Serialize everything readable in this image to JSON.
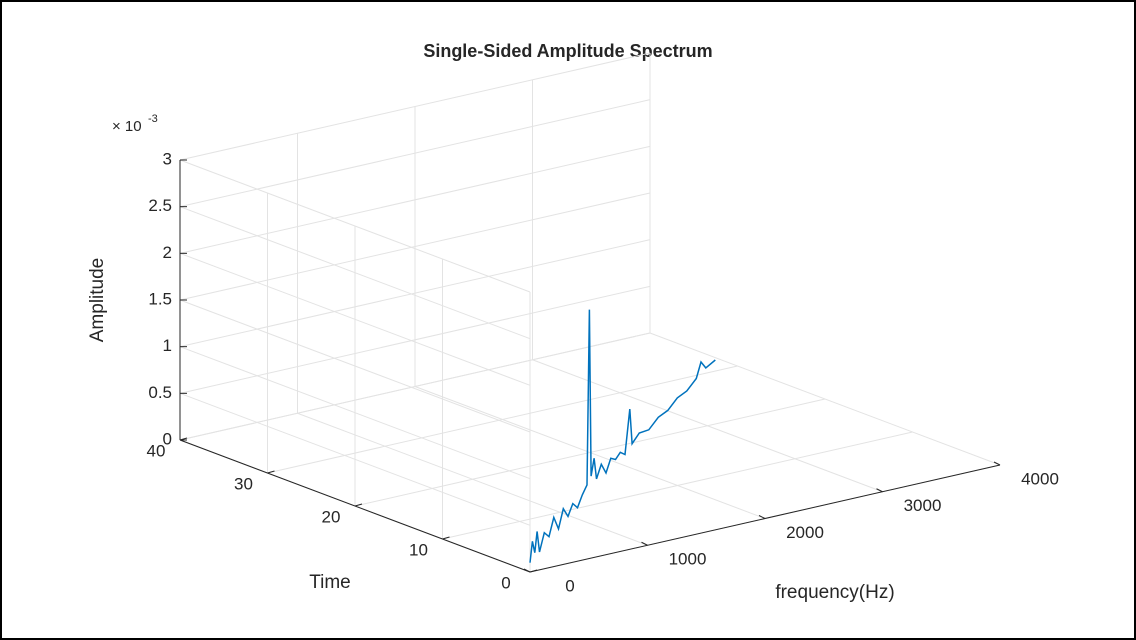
{
  "chart_data": {
    "type": "line3d",
    "title": "Single-Sided Amplitude Spectrum",
    "xlabel": "frequency(Hz)",
    "ylabel": "Time",
    "zlabel": "Amplitude",
    "z_multiplier": {
      "base": "× 10",
      "exponent": "-3"
    },
    "xlim": [
      0,
      4000
    ],
    "xticks": [
      0,
      1000,
      2000,
      3000,
      4000
    ],
    "ylim": [
      0,
      40
    ],
    "yticks": [
      0,
      10,
      20,
      30,
      40
    ],
    "zlim": [
      0,
      3
    ],
    "zticks": [
      0,
      0.5,
      1,
      1.5,
      2,
      2.5,
      3
    ],
    "grid": true,
    "series": [
      {
        "color": "#0072bd",
        "x": [
          0,
          50,
          100,
          150,
          200,
          300,
          400,
          500,
          600,
          700,
          800,
          900,
          1000,
          1100,
          1200,
          1250,
          1280,
          1350,
          1400,
          1500,
          1600,
          1700,
          1800,
          1900,
          2000,
          2100,
          2150,
          2300,
          2500,
          2700,
          2900,
          3100,
          3300,
          3500,
          3600,
          3700,
          3900
        ],
        "y": [
          0,
          0.4,
          0.8,
          1.2,
          1.6,
          2.4,
          3.2,
          4,
          4.8,
          5.6,
          6.4,
          7.2,
          8,
          8.8,
          9.6,
          10,
          10.2,
          10.8,
          11.2,
          12,
          12.8,
          13.6,
          14.4,
          15.2,
          16,
          16.8,
          17.2,
          18.4,
          20,
          21.6,
          23.2,
          24.8,
          26.4,
          28,
          28.8,
          29.6,
          31.2
        ],
        "z": [
          0.1,
          0.3,
          0.15,
          0.35,
          0.1,
          0.25,
          0.15,
          0.3,
          0.12,
          0.28,
          0.14,
          0.22,
          0.12,
          0.2,
          0.25,
          2.1,
          0.3,
          0.45,
          0.2,
          0.3,
          0.15,
          0.25,
          0.18,
          0.2,
          0.12,
          0.55,
          0.15,
          0.18,
          0.1,
          0.12,
          0.08,
          0.1,
          0.06,
          0.08,
          0.2,
          0.08,
          0.05
        ]
      }
    ]
  }
}
